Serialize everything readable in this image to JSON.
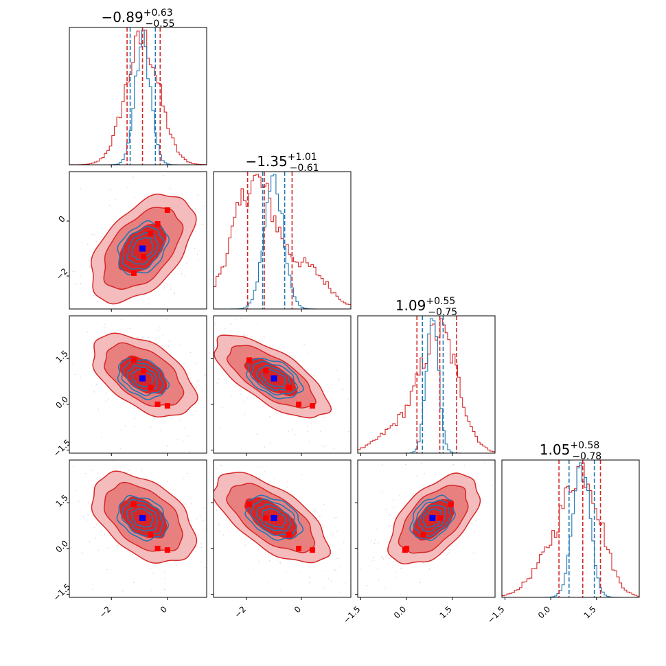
{
  "colors": {
    "red": "#d62728",
    "blue": "#1f77b4",
    "red_fill_outer": "#f4bcbc",
    "red_fill_mid": "#e98080",
    "red_fill_inner": "#d62728",
    "truth_blue": "#0000ff",
    "point_red": "#ff0000"
  },
  "chart_data": {
    "type": "corner",
    "parameters": 4,
    "titles": [
      {
        "main": "−0.89",
        "sup": "+0.63",
        "sub": "−0.55"
      },
      {
        "main": "−1.35",
        "sup": "+1.01",
        "sub": "−0.61"
      },
      {
        "main": "1.09",
        "sup": "+0.55",
        "sub": "−0.75"
      },
      {
        "main": "1.05",
        "sup": "+0.58",
        "sub": "−0.78"
      }
    ],
    "ranges": [
      [
        -3.5,
        1.4
      ],
      [
        -3.2,
        1.8
      ],
      [
        -1.6,
        2.9
      ],
      [
        -1.6,
        2.9
      ]
    ],
    "ticks": [
      [
        {
          "v": -2,
          "label": "−2"
        },
        {
          "v": 0,
          "label": "0"
        }
      ],
      [
        {
          "v": -2,
          "label": "−2"
        },
        {
          "v": 0,
          "label": "0"
        }
      ],
      [
        {
          "v": -1.5,
          "label": "−1.5"
        },
        {
          "v": 0.0,
          "label": "0.0"
        },
        {
          "v": 1.5,
          "label": "1.5"
        }
      ],
      [
        {
          "v": -1.5,
          "label": "−1.5"
        },
        {
          "v": 0.0,
          "label": "0.0"
        },
        {
          "v": 1.5,
          "label": "1.5"
        }
      ]
    ],
    "red_quantiles": [
      [
        -1.44,
        -0.89,
        -0.26
      ],
      [
        -1.96,
        -1.35,
        -0.34
      ],
      [
        0.34,
        1.09,
        1.64
      ],
      [
        0.27,
        1.05,
        1.63
      ]
    ],
    "blue_quantiles": [
      [
        -1.33,
        -0.43
      ],
      [
        -1.41,
        -0.61
      ],
      [
        0.52,
        1.2
      ],
      [
        0.6,
        1.43
      ]
    ],
    "red_marginal": [
      {
        "mean": -0.89,
        "sd": 0.6
      },
      {
        "mean": -1.7,
        "sd": 0.8,
        "mix_mean": 0.3,
        "mix_sd": 0.7,
        "mix_w": 0.2
      },
      {
        "mean": 1.1,
        "sd": 0.6,
        "mix_mean": -0.2,
        "mix_sd": 0.7,
        "mix_w": 0.2
      },
      {
        "mean": 1.05,
        "sd": 0.6,
        "mix_mean": -0.1,
        "mix_sd": 0.6,
        "mix_w": 0.2
      }
    ],
    "blue_marginal": [
      {
        "mean": -0.88,
        "sd": 0.28
      },
      {
        "mean": -1.0,
        "sd": 0.35
      },
      {
        "mean": 0.85,
        "sd": 0.2
      },
      {
        "mean": 1.0,
        "sd": 0.28
      }
    ],
    "truth_point": [
      -0.89,
      -1.0,
      0.85,
      1.0
    ],
    "red_points": [
      [
        -1.2,
        -1.9,
        1.45,
        1.45
      ],
      [
        -0.6,
        -0.45,
        0.55,
        0.45
      ],
      [
        -0.85,
        -1.3,
        1.1,
        1.0
      ],
      [
        0.0,
        0.4,
        -0.05,
        -0.05
      ],
      [
        -0.35,
        -0.1,
        0.0,
        0.0
      ]
    ],
    "pair_stats": {
      "1-0": {
        "cx": -0.9,
        "cy": -1.0,
        "sx": 0.75,
        "sy": 0.8,
        "rho": 0.5
      },
      "2-0": {
        "cx": -0.85,
        "cy": 0.95,
        "sx": 0.75,
        "sy": 0.55,
        "rho": -0.5
      },
      "2-1": {
        "cx": -1.1,
        "cy": 0.9,
        "sx": 0.85,
        "sy": 0.55,
        "rho": -0.7
      },
      "3-0": {
        "cx": -0.85,
        "cy": 1.0,
        "sx": 0.75,
        "sy": 0.6,
        "rho": -0.45
      },
      "3-1": {
        "cx": -1.1,
        "cy": 1.0,
        "sx": 0.85,
        "sy": 0.6,
        "rho": -0.65
      },
      "3-2": {
        "cx": 0.9,
        "cy": 0.95,
        "sx": 0.6,
        "sy": 0.6,
        "rho": 0.55
      }
    }
  }
}
